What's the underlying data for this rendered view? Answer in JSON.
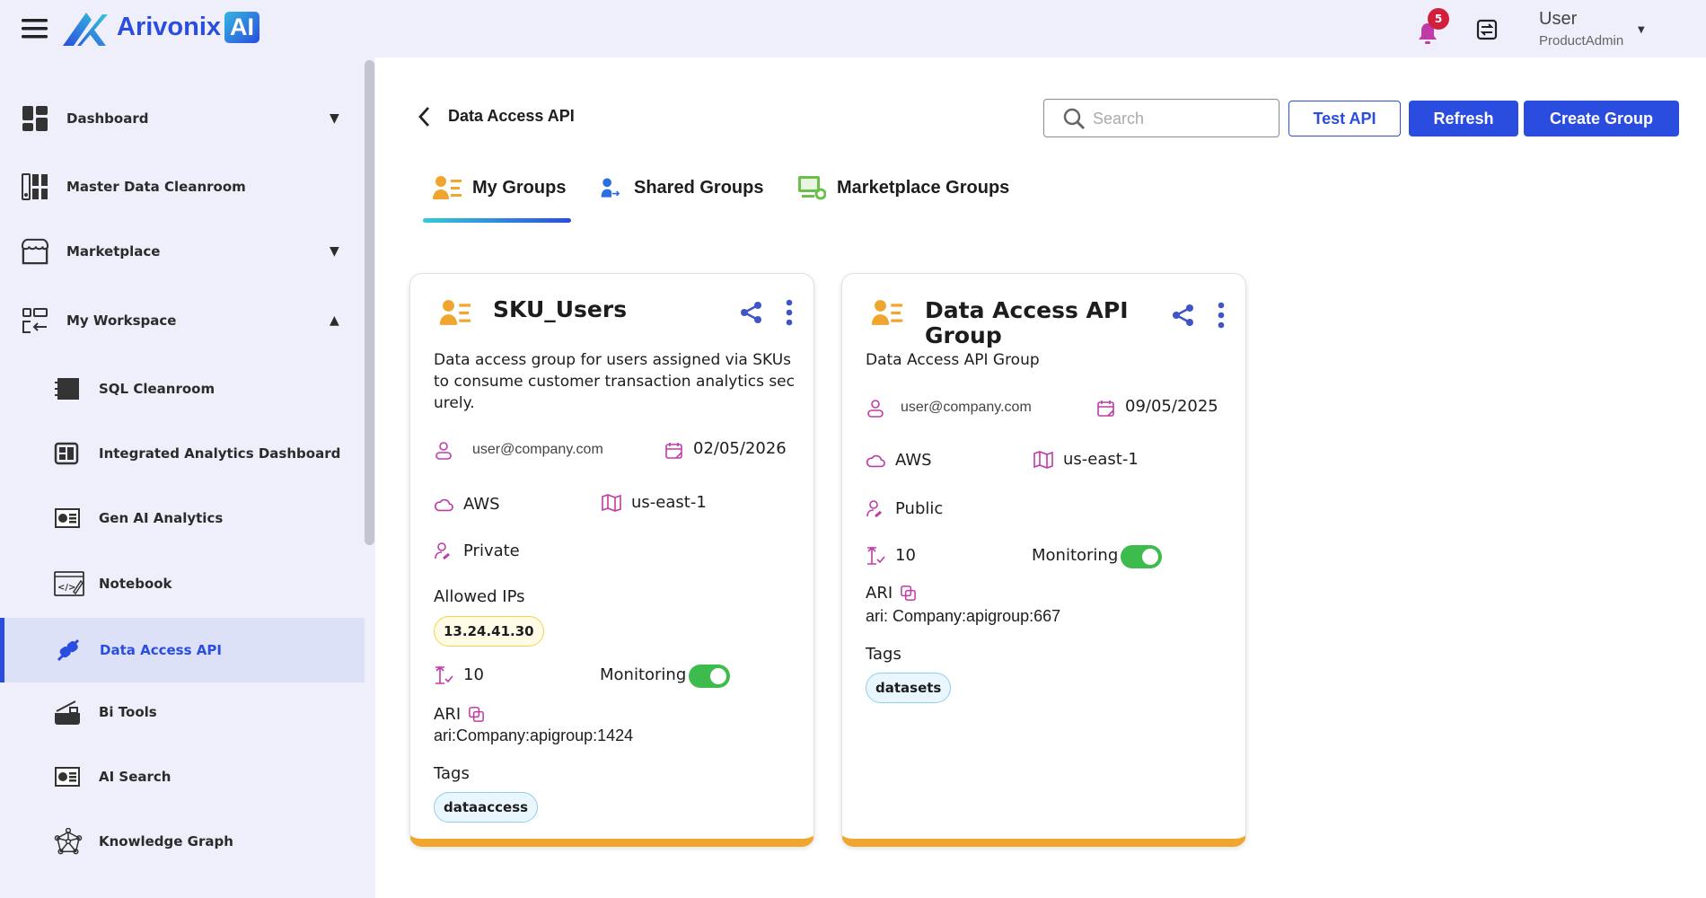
{
  "header": {
    "logo_text": "Arivonix",
    "logo_badge": "AI",
    "notification_count": "5",
    "user_name": "User",
    "user_role": "ProductAdmin"
  },
  "sidebar": {
    "items": [
      {
        "label": "Dashboard",
        "icon": "dashboard-icon",
        "arrow": "▼"
      },
      {
        "label": "Master Data Cleanroom",
        "icon": "cleanroom-icon"
      },
      {
        "label": "Marketplace",
        "icon": "store-icon",
        "arrow": "▼"
      },
      {
        "label": "My Workspace",
        "icon": "workspace-icon",
        "arrow": "▲"
      }
    ],
    "sub_items": [
      {
        "label": "SQL Cleanroom"
      },
      {
        "label": "Integrated Analytics Dashboard"
      },
      {
        "label": "Gen AI Analytics"
      },
      {
        "label": "Notebook"
      },
      {
        "label": "Data Access API",
        "active": true
      },
      {
        "label": "Bi Tools"
      },
      {
        "label": "AI Search"
      },
      {
        "label": "Knowledge Graph"
      }
    ]
  },
  "page": {
    "title": "Data Access API",
    "search_placeholder": "Search",
    "test_api": "Test API",
    "refresh": "Refresh",
    "create_group": "Create Group"
  },
  "tabs": [
    {
      "label": "My Groups",
      "active": true
    },
    {
      "label": "Shared Groups"
    },
    {
      "label": "Marketplace Groups"
    }
  ],
  "colors": {
    "primary": "#2a4de0",
    "accent_orange": "#f0a62e",
    "icon_magenta": "#c03aa8",
    "toggle_on": "#3dbb4c"
  },
  "cards": [
    {
      "title": "SKU_Users",
      "description": "Data access group for users assigned via SKUs to consume customer transaction analytics securely.",
      "owner": "user@company.com",
      "date": "02/05/2026",
      "cloud": "AWS",
      "region": "us-east-1",
      "visibility": "Private",
      "allowed_ips_label": "Allowed IPs",
      "allowed_ips": [
        "13.24.41.30"
      ],
      "limit": "10",
      "monitoring_label": "Monitoring",
      "monitoring": true,
      "ari_label": "ARI",
      "ari": "ari:Company:apigroup:1424",
      "tags_label": "Tags",
      "tags": [
        "dataaccess"
      ]
    },
    {
      "title": "Data Access API Group",
      "description": "Data Access API Group",
      "owner": "user@company.com",
      "date": "09/05/2025",
      "cloud": "AWS",
      "region": "us-east-1",
      "visibility": "Public",
      "limit": "10",
      "monitoring_label": "Monitoring",
      "monitoring": true,
      "ari_label": "ARI",
      "ari": "ari: Company:apigroup:667",
      "tags_label": "Tags",
      "tags": [
        "datasets"
      ]
    }
  ]
}
